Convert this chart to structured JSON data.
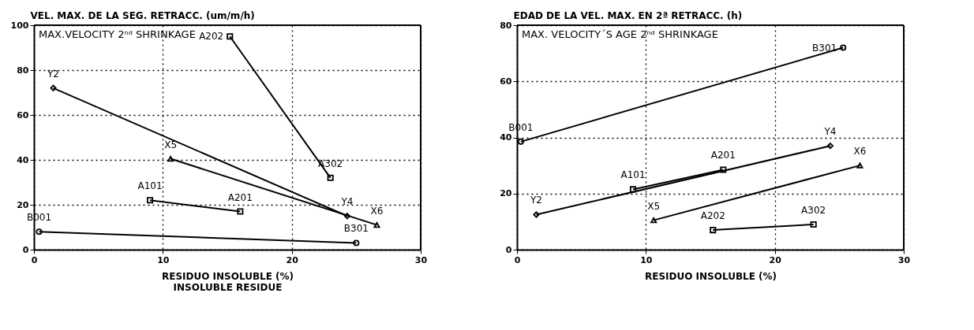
{
  "chart_data": [
    {
      "type": "line",
      "ylabel": "VEL. MAX. DE LA SEG. RETRACC. (um/m/h)",
      "xlabel": "RESIDUO INSOLUBLE (%)\nINSOLUBLE RESIDUE",
      "xlim": [
        0,
        30
      ],
      "xticks": [
        0,
        10,
        20,
        30
      ],
      "ylim": [
        0,
        100
      ],
      "yticks": [
        0,
        20,
        40,
        60,
        80,
        100
      ],
      "grid": true,
      "legend": false,
      "line_style": "solid",
      "series": [
        {
          "color": "#000000",
          "marker": "circle",
          "x": [
            0.4,
            25
          ],
          "values": [
            8,
            3
          ]
        },
        {
          "color": "#000000",
          "marker": "square",
          "x": [
            9,
            16
          ],
          "values": [
            22,
            17
          ]
        },
        {
          "color": "#000000",
          "marker": "square",
          "x": [
            15.2,
            23
          ],
          "values": [
            95,
            32
          ]
        },
        {
          "color": "#000000",
          "marker": "diamond",
          "x": [
            1.5,
            24.3
          ],
          "values": [
            72,
            15
          ]
        },
        {
          "color": "#000000",
          "marker": "triangle",
          "x": [
            10.6,
            26.6
          ],
          "values": [
            40.5,
            11
          ]
        }
      ],
      "annotations": [
        "MAX.VELOCITY 2ⁿᵈ SHRINKAGE",
        {
          "text": "B001",
          "x": 0.4,
          "y": 8
        },
        {
          "text": "B301",
          "x": 25,
          "y": 3
        },
        {
          "text": "A101",
          "x": 9,
          "y": 22
        },
        {
          "text": "A201",
          "x": 16,
          "y": 17
        },
        {
          "text": "A202",
          "x": 15.2,
          "y": 95
        },
        {
          "text": "A302",
          "x": 23,
          "y": 32
        },
        {
          "text": "Y2",
          "x": 1.5,
          "y": 72
        },
        {
          "text": "Y4",
          "x": 24.3,
          "y": 15
        },
        {
          "text": "X5",
          "x": 10.6,
          "y": 40.5
        },
        {
          "text": "X6",
          "x": 26.6,
          "y": 11
        }
      ]
    },
    {
      "type": "line",
      "ylabel": "EDAD DE LA VEL. MAX. EN 2ª RETRACC. (h)",
      "xlabel": "RESIDUO INSOLUBLE (%)",
      "xlim": [
        0,
        30
      ],
      "xticks": [
        0,
        10,
        20,
        30
      ],
      "ylim": [
        0,
        80
      ],
      "yticks": [
        0,
        20,
        40,
        60,
        80
      ],
      "grid": true,
      "legend": false,
      "line_style": "solid",
      "series": [
        {
          "color": "#000000",
          "marker": "circle",
          "x": [
            0.3,
            25.3
          ],
          "values": [
            38.5,
            72
          ]
        },
        {
          "color": "#000000",
          "marker": "square",
          "x": [
            9,
            16
          ],
          "values": [
            21.5,
            28.5
          ]
        },
        {
          "color": "#000000",
          "marker": "square",
          "x": [
            15.2,
            23
          ],
          "values": [
            7,
            9
          ]
        },
        {
          "color": "#000000",
          "marker": "diamond",
          "x": [
            1.5,
            24.3
          ],
          "values": [
            12.5,
            37
          ]
        },
        {
          "color": "#000000",
          "marker": "triangle",
          "x": [
            10.6,
            26.6
          ],
          "values": [
            10.5,
            30
          ]
        }
      ],
      "annotations": [
        "MAX. VELOCITY´S  AGE 2ⁿᵈ SHRINKAGE",
        {
          "text": "B001",
          "x": 0.3,
          "y": 38.5
        },
        {
          "text": "B301",
          "x": 25.3,
          "y": 72
        },
        {
          "text": "A101",
          "x": 9,
          "y": 21.5
        },
        {
          "text": "A201",
          "x": 16,
          "y": 28.5
        },
        {
          "text": "A202",
          "x": 15.2,
          "y": 7
        },
        {
          "text": "A302",
          "x": 23,
          "y": 9
        },
        {
          "text": "Y2",
          "x": 1.5,
          "y": 12.5
        },
        {
          "text": "Y4",
          "x": 24.3,
          "y": 37
        },
        {
          "text": "X5",
          "x": 10.6,
          "y": 10.5
        },
        {
          "text": "X6",
          "x": 26.6,
          "y": 30
        }
      ]
    }
  ]
}
